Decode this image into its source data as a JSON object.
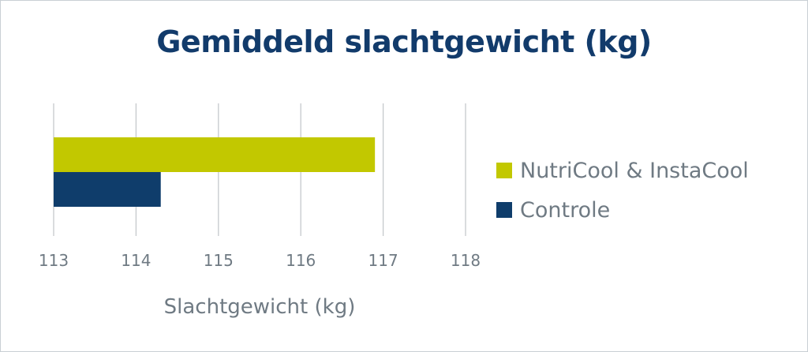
{
  "chart_data": {
    "type": "bar",
    "orientation": "horizontal",
    "title": "Gemiddeld slachtgewicht (kg)",
    "xlabel": "Slachtgewicht (kg)",
    "ylabel": "",
    "xlim": [
      113,
      118
    ],
    "xticks": [
      113,
      114,
      115,
      116,
      117,
      118
    ],
    "grid": true,
    "legend_position": "right",
    "series": [
      {
        "name": "NutriCool & InstaCool",
        "value": 116.9,
        "color": "#c2c800"
      },
      {
        "name": "Controle",
        "value": 114.3,
        "color": "#0f3d6b"
      }
    ]
  }
}
